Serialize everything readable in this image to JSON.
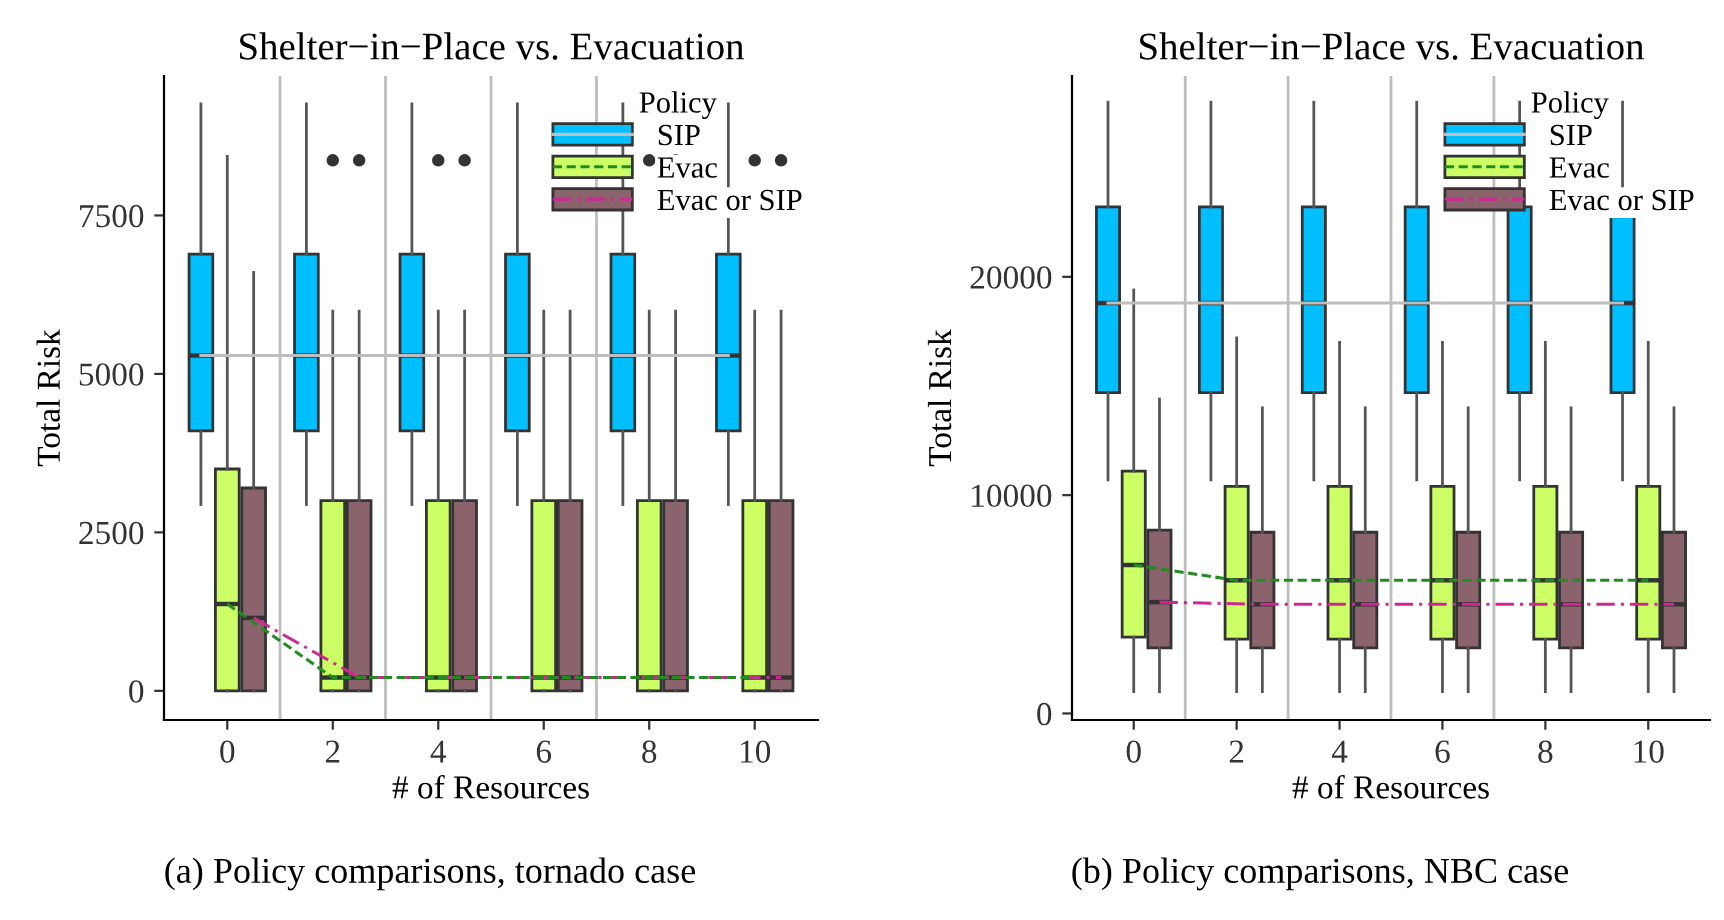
{
  "chart_data": [
    {
      "type": "box",
      "title": "Shelter−in−Place vs. Evacuation",
      "xlabel": "# of Resources",
      "ylabel": "Total Risk",
      "legend_title": "Policy",
      "legend": "top right",
      "grid": false,
      "x": [
        0,
        2,
        4,
        6,
        8,
        10
      ],
      "xlim": [
        -1.2,
        11.2
      ],
      "xticks": [
        0,
        2,
        4,
        6,
        8,
        10
      ],
      "ylim": [
        -460,
        9700
      ],
      "yticks": [
        0,
        2500,
        5000,
        7500
      ],
      "ref_lines": [
        {
          "axis": "x",
          "value": 1,
          "color": "#bebebe"
        },
        {
          "axis": "x",
          "value": 3,
          "color": "#bebebe"
        },
        {
          "axis": "x",
          "value": 5,
          "color": "#bebebe"
        },
        {
          "axis": "x",
          "value": 7,
          "color": "#bebebe"
        }
      ],
      "series": [
        {
          "name": "SIP",
          "color": "#00bfff",
          "boxes": [
            {
              "low": 2940,
              "q1": 4100,
              "median": 5290,
              "q3": 6890,
              "high": 9260
            },
            {
              "low": 2940,
              "q1": 4100,
              "median": 5290,
              "q3": 6890,
              "high": 9260
            },
            {
              "low": 2940,
              "q1": 4100,
              "median": 5290,
              "q3": 6890,
              "high": 9260
            },
            {
              "low": 2940,
              "q1": 4100,
              "median": 5290,
              "q3": 6890,
              "high": 9260
            },
            {
              "low": 2940,
              "q1": 4100,
              "median": 5290,
              "q3": 6890,
              "high": 9260
            },
            {
              "low": 2940,
              "q1": 4100,
              "median": 5290,
              "q3": 6890,
              "high": 9260
            }
          ]
        },
        {
          "name": "Evac",
          "color": "#ccff66",
          "boxes": [
            {
              "low": 0,
              "q1": 0,
              "median": 1370,
              "q3": 3500,
              "high": 8430
            },
            {
              "low": 0,
              "q1": 0,
              "median": 210,
              "q3": 3000,
              "high": 5990,
              "outliers": [
                8370
              ]
            },
            {
              "low": 0,
              "q1": 0,
              "median": 210,
              "q3": 3000,
              "high": 5990,
              "outliers": [
                8370
              ]
            },
            {
              "low": 0,
              "q1": 0,
              "median": 210,
              "q3": 3000,
              "high": 5990
            },
            {
              "low": 0,
              "q1": 0,
              "median": 210,
              "q3": 3000,
              "high": 5990,
              "outliers": [
                8370
              ]
            },
            {
              "low": 0,
              "q1": 0,
              "median": 210,
              "q3": 3000,
              "high": 5990,
              "outliers": [
                8370
              ]
            }
          ]
        },
        {
          "name": "Evac or SIP",
          "color": "#8b636c",
          "boxes": [
            {
              "low": 0,
              "q1": 0,
              "median": 1150,
              "q3": 3200,
              "high": 6600
            },
            {
              "low": 0,
              "q1": 0,
              "median": 210,
              "q3": 3000,
              "high": 5990,
              "outliers": [
                8370
              ]
            },
            {
              "low": 0,
              "q1": 0,
              "median": 210,
              "q3": 3000,
              "high": 5990,
              "outliers": [
                8370
              ]
            },
            {
              "low": 0,
              "q1": 0,
              "median": 210,
              "q3": 3000,
              "high": 5990
            },
            {
              "low": 0,
              "q1": 0,
              "median": 210,
              "q3": 3000,
              "high": 5990,
              "outliers": [
                8370
              ]
            },
            {
              "low": 0,
              "q1": 0,
              "median": 210,
              "q3": 3000,
              "high": 5990,
              "outliers": [
                8370
              ]
            }
          ]
        },
        {
          "type": "line",
          "color": "#bebebe",
          "line_style": "solid",
          "x": [
            -0.5,
            1.5,
            3.5,
            5.5,
            7.5,
            9.5
          ],
          "values": [
            5290,
            5290,
            5290,
            5290,
            5290,
            5290
          ]
        },
        {
          "type": "line",
          "color": "#228b22",
          "line_style": "dashed",
          "x": [
            0,
            2,
            4,
            6,
            8,
            10
          ],
          "values": [
            1370,
            210,
            210,
            210,
            210,
            210
          ]
        },
        {
          "type": "line",
          "color": "#cd2990",
          "line_style": "dashdot",
          "x": [
            0.5,
            2.5,
            4.5,
            6.5,
            8.5,
            10.5
          ],
          "values": [
            1150,
            210,
            210,
            210,
            210,
            210
          ]
        }
      ],
      "annotations": [
        "(a) Policy comparisons, tornado case"
      ]
    },
    {
      "type": "box",
      "title": "Shelter−in−Place vs. Evacuation",
      "xlabel": "# of Resources",
      "ylabel": "Total Risk",
      "legend_title": "Policy",
      "legend": "top right",
      "grid": false,
      "x": [
        0,
        2,
        4,
        6,
        8,
        10
      ],
      "xlim": [
        -1.2,
        11.2
      ],
      "xticks": [
        0,
        2,
        4,
        6,
        8,
        10
      ],
      "ylim": [
        -300,
        29200
      ],
      "yticks": [
        0,
        10000,
        20000
      ],
      "ref_lines": [
        {
          "axis": "x",
          "value": 1,
          "color": "#bebebe"
        },
        {
          "axis": "x",
          "value": 3,
          "color": "#bebebe"
        },
        {
          "axis": "x",
          "value": 5,
          "color": "#bebebe"
        },
        {
          "axis": "x",
          "value": 7,
          "color": "#bebebe"
        }
      ],
      "series": [
        {
          "name": "SIP",
          "color": "#00bfff",
          "boxes": [
            {
              "low": 10700,
              "q1": 14700,
              "median": 18800,
              "q3": 23200,
              "high": 28000
            },
            {
              "low": 10700,
              "q1": 14700,
              "median": 18800,
              "q3": 23200,
              "high": 28000
            },
            {
              "low": 10700,
              "q1": 14700,
              "median": 18800,
              "q3": 23200,
              "high": 28000
            },
            {
              "low": 10700,
              "q1": 14700,
              "median": 18800,
              "q3": 23200,
              "high": 28000
            },
            {
              "low": 10700,
              "q1": 14700,
              "median": 18800,
              "q3": 23200,
              "high": 28000
            },
            {
              "low": 10700,
              "q1": 14700,
              "median": 18800,
              "q3": 23200,
              "high": 28000
            }
          ]
        },
        {
          "name": "Evac",
          "color": "#ccff66",
          "boxes": [
            {
              "low": 1000,
              "q1": 3500,
              "median": 6800,
              "q3": 11100,
              "high": 19400
            },
            {
              "low": 1000,
              "q1": 3400,
              "median": 6100,
              "q3": 10400,
              "high": 17200
            },
            {
              "low": 1000,
              "q1": 3400,
              "median": 6100,
              "q3": 10400,
              "high": 17000
            },
            {
              "low": 1000,
              "q1": 3400,
              "median": 6100,
              "q3": 10400,
              "high": 17000
            },
            {
              "low": 1000,
              "q1": 3400,
              "median": 6100,
              "q3": 10400,
              "high": 17000
            },
            {
              "low": 1000,
              "q1": 3400,
              "median": 6100,
              "q3": 10400,
              "high": 17000
            }
          ]
        },
        {
          "name": "Evac or SIP",
          "color": "#8b636c",
          "boxes": [
            {
              "low": 1000,
              "q1": 3000,
              "median": 5100,
              "q3": 8400,
              "high": 14400
            },
            {
              "low": 1000,
              "q1": 3000,
              "median": 5000,
              "q3": 8300,
              "high": 14000
            },
            {
              "low": 1000,
              "q1": 3000,
              "median": 5000,
              "q3": 8300,
              "high": 14000
            },
            {
              "low": 1000,
              "q1": 3000,
              "median": 5000,
              "q3": 8300,
              "high": 14000
            },
            {
              "low": 1000,
              "q1": 3000,
              "median": 5000,
              "q3": 8300,
              "high": 14000
            },
            {
              "low": 1000,
              "q1": 3000,
              "median": 5000,
              "q3": 8300,
              "high": 14000
            }
          ]
        },
        {
          "type": "line",
          "color": "#bebebe",
          "line_style": "solid",
          "x": [
            -0.5,
            1.5,
            3.5,
            5.5,
            7.5,
            9.5
          ],
          "values": [
            18800,
            18800,
            18800,
            18800,
            18800,
            18800
          ]
        },
        {
          "type": "line",
          "color": "#228b22",
          "line_style": "dashed",
          "x": [
            0,
            2,
            4,
            6,
            8,
            10
          ],
          "values": [
            6800,
            6100,
            6100,
            6100,
            6100,
            6100
          ]
        },
        {
          "type": "line",
          "color": "#cd2990",
          "line_style": "dashdot",
          "x": [
            0.5,
            2.5,
            4.5,
            6.5,
            8.5,
            10.5
          ],
          "values": [
            5100,
            5000,
            5000,
            5000,
            5000,
            5000
          ]
        }
      ],
      "annotations": [
        "(b) Policy comparisons, NBC case"
      ]
    }
  ]
}
